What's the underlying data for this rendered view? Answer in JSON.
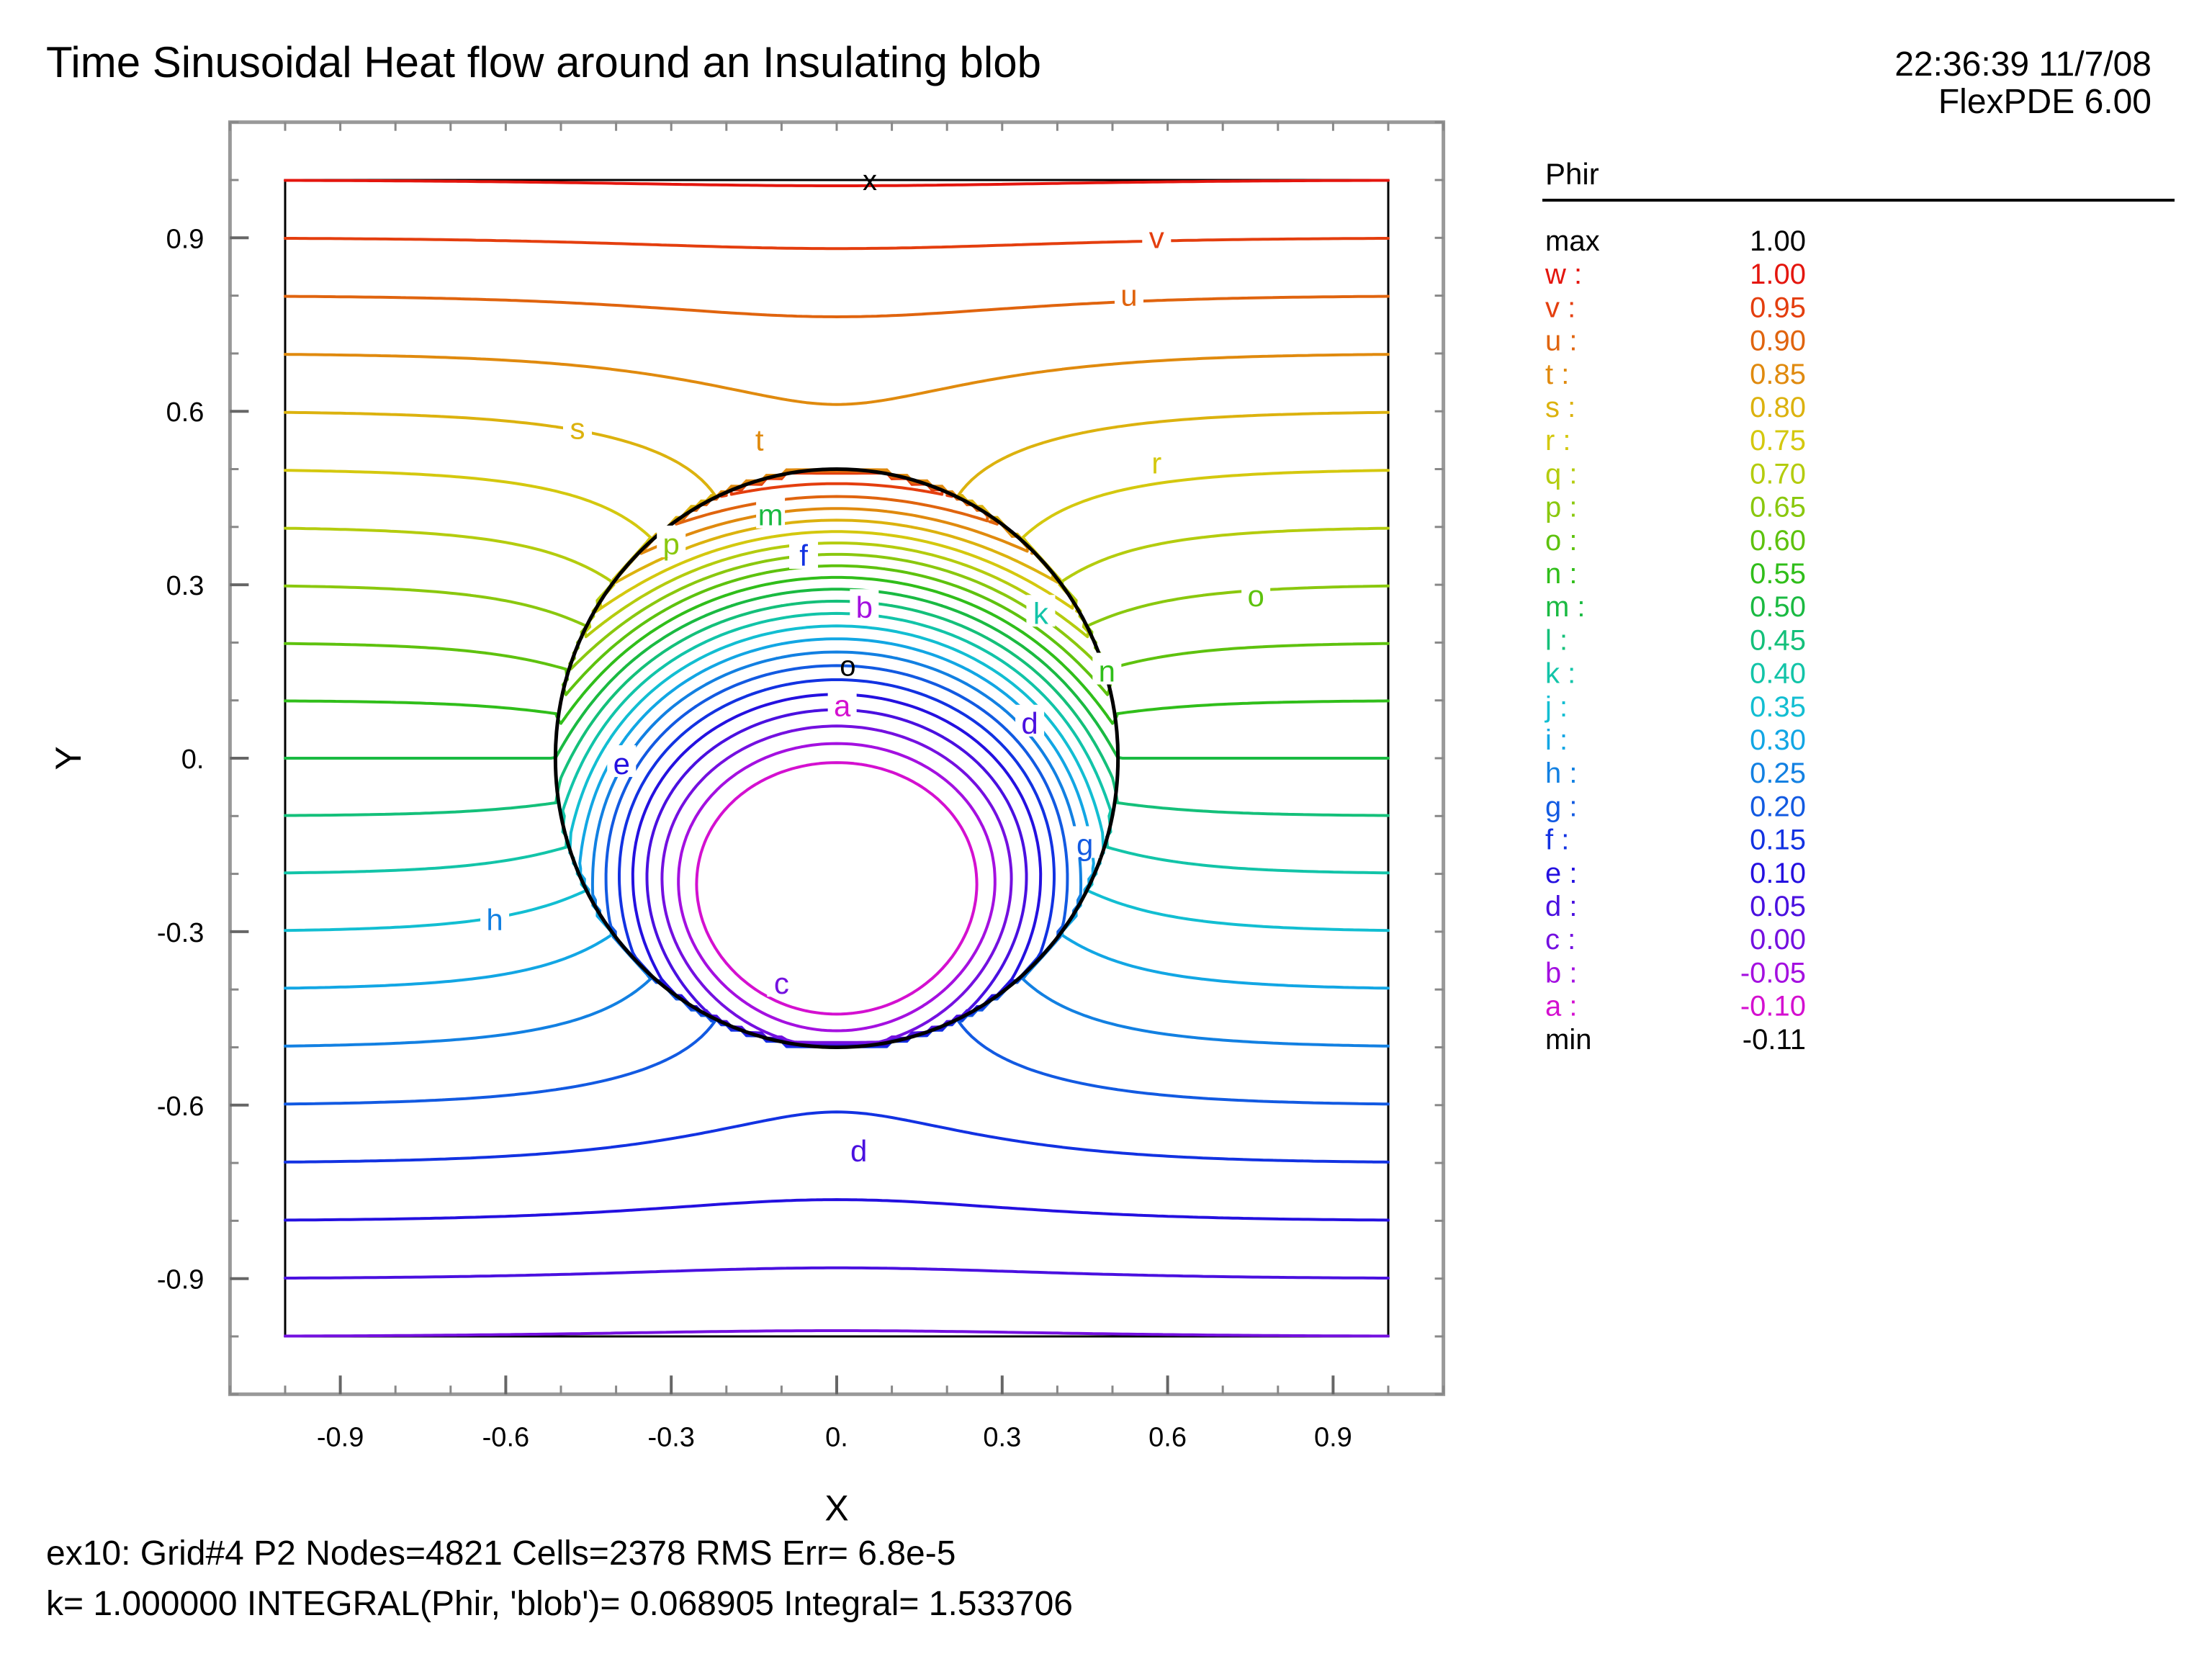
{
  "header": {
    "title": "Time Sinusoidal Heat flow around an Insulating blob",
    "timestamp": "22:36:39 11/7/08",
    "program": "FlexPDE 6.00"
  },
  "footer": {
    "line1": "ex10:  Grid#4  P2  Nodes=4821 Cells=2378 RMS Err= 6.8e-5",
    "line2": "k=  1.000000  INTEGRAL(Phir, 'blob')=  0.068905  Integral=  1.533706"
  },
  "chart_data": {
    "type": "contour",
    "variable": "Phir",
    "xlabel": "X",
    "ylabel": "Y",
    "xlim": [
      -1.1,
      1.1
    ],
    "ylim": [
      -1.1,
      1.1
    ],
    "domain": {
      "x": [
        -1,
        1
      ],
      "y": [
        -1,
        1
      ]
    },
    "blob": {
      "shape": "circle",
      "center": [
        0,
        0
      ],
      "radius": 0.5
    },
    "x_ticks": [
      {
        "value": -0.9,
        "label": "-0.9"
      },
      {
        "value": -0.6,
        "label": "-0.6"
      },
      {
        "value": -0.3,
        "label": "-0.3"
      },
      {
        "value": 0,
        "label": "0."
      },
      {
        "value": 0.3,
        "label": "0.3"
      },
      {
        "value": 0.6,
        "label": "0.6"
      },
      {
        "value": 0.9,
        "label": "0.9"
      }
    ],
    "y_ticks": [
      {
        "value": 0.9,
        "label": "0.9"
      },
      {
        "value": 0.6,
        "label": "0.6"
      },
      {
        "value": 0.3,
        "label": "0.3"
      },
      {
        "value": 0,
        "label": "0."
      },
      {
        "value": -0.3,
        "label": "-0.3"
      },
      {
        "value": -0.6,
        "label": "-0.6"
      },
      {
        "value": -0.9,
        "label": "-0.9"
      }
    ],
    "markers": [
      {
        "label": "x",
        "x": 0.06,
        "y": 1.0
      },
      {
        "label": "o",
        "x": 0.02,
        "y": 0.16
      }
    ],
    "legend": {
      "title": "Phir",
      "max": {
        "label": "max",
        "value": "1.00"
      },
      "min": {
        "label": "min",
        "value": "-0.11"
      },
      "levels": [
        {
          "key": "w",
          "value": 1.0,
          "text": "1.00",
          "color": "#e4160e"
        },
        {
          "key": "v",
          "value": 0.95,
          "text": "0.95",
          "color": "#e43e0e"
        },
        {
          "key": "u",
          "value": 0.9,
          "text": "0.90",
          "color": "#e0640e"
        },
        {
          "key": "t",
          "value": 0.85,
          "text": "0.85",
          "color": "#e08a0e"
        },
        {
          "key": "s",
          "value": 0.8,
          "text": "0.80",
          "color": "#dcb20e"
        },
        {
          "key": "r",
          "value": 0.75,
          "text": "0.75",
          "color": "#d4c80e"
        },
        {
          "key": "q",
          "value": 0.7,
          "text": "0.70",
          "color": "#b4cc0e"
        },
        {
          "key": "p",
          "value": 0.65,
          "text": "0.65",
          "color": "#8ac80e"
        },
        {
          "key": "o",
          "value": 0.6,
          "text": "0.60",
          "color": "#5ec20e"
        },
        {
          "key": "n",
          "value": 0.55,
          "text": "0.55",
          "color": "#30be1a"
        },
        {
          "key": "m",
          "value": 0.5,
          "text": "0.50",
          "color": "#1aba42"
        },
        {
          "key": "l",
          "value": 0.45,
          "text": "0.45",
          "color": "#14c07a"
        },
        {
          "key": "k",
          "value": 0.4,
          "text": "0.40",
          "color": "#12c4a8"
        },
        {
          "key": "j",
          "value": 0.35,
          "text": "0.35",
          "color": "#12bed2"
        },
        {
          "key": "i",
          "value": 0.3,
          "text": "0.30",
          "color": "#12a6e4"
        },
        {
          "key": "h",
          "value": 0.25,
          "text": "0.25",
          "color": "#1280e2"
        },
        {
          "key": "g",
          "value": 0.2,
          "text": "0.20",
          "color": "#125ae2"
        },
        {
          "key": "f",
          "value": 0.15,
          "text": "0.15",
          "color": "#1232e2"
        },
        {
          "key": "e",
          "value": 0.1,
          "text": "0.10",
          "color": "#2410e0"
        },
        {
          "key": "d",
          "value": 0.05,
          "text": "0.05",
          "color": "#4a10e0"
        },
        {
          "key": "c",
          "value": 0.0,
          "text": "0.00",
          "color": "#7410e0"
        },
        {
          "key": "b",
          "value": -0.05,
          "text": "-0.05",
          "color": "#a410e0"
        },
        {
          "key": "a",
          "value": -0.1,
          "text": "-0.10",
          "color": "#d410d0"
        }
      ]
    },
    "contour_labels": [
      {
        "key": "v",
        "x": 0.58,
        "y": 0.9
      },
      {
        "key": "u",
        "x": 0.53,
        "y": 0.8
      },
      {
        "key": "t",
        "x": -0.14,
        "y": 0.55
      },
      {
        "key": "s",
        "x": -0.47,
        "y": 0.57
      },
      {
        "key": "r",
        "x": 0.58,
        "y": 0.51
      },
      {
        "key": "o",
        "x": 0.76,
        "y": 0.28
      },
      {
        "key": "m",
        "x": -0.12,
        "y": 0.42
      },
      {
        "key": "p",
        "x": -0.3,
        "y": 0.37
      },
      {
        "key": "f",
        "x": -0.06,
        "y": 0.35
      },
      {
        "key": "b",
        "x": 0.05,
        "y": 0.26
      },
      {
        "key": "k",
        "x": 0.37,
        "y": 0.25
      },
      {
        "key": "n",
        "x": 0.49,
        "y": 0.15
      },
      {
        "key": "a",
        "x": 0.01,
        "y": 0.09
      },
      {
        "key": "d",
        "x": 0.35,
        "y": 0.06
      },
      {
        "key": "e",
        "x": -0.39,
        "y": -0.01
      },
      {
        "key": "g",
        "x": 0.45,
        "y": -0.15
      },
      {
        "key": "h",
        "x": -0.62,
        "y": -0.28
      },
      {
        "key": "c",
        "x": -0.1,
        "y": -0.39
      },
      {
        "key": "d",
        "x": 0.04,
        "y": -0.68
      }
    ]
  }
}
